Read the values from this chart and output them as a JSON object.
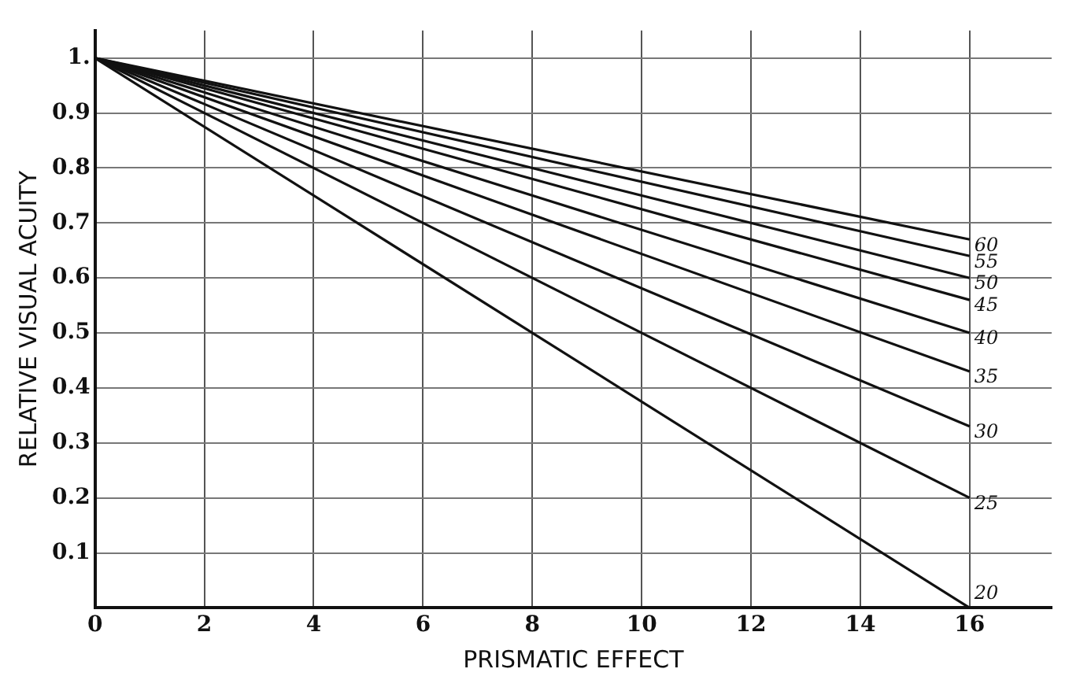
{
  "chart_data": {
    "type": "line",
    "xlabel": "PRISMATIC EFFECT",
    "ylabel": "RELATIVE VISUAL ACUITY",
    "x": [
      0,
      16
    ],
    "series": [
      {
        "name": "20",
        "color": "#111111",
        "values": [
          1,
          0
        ]
      },
      {
        "name": "25",
        "color": "#111111",
        "values": [
          1,
          0.2
        ]
      },
      {
        "name": "30",
        "color": "#111111",
        "values": [
          1,
          0.33
        ]
      },
      {
        "name": "35",
        "color": "#111111",
        "values": [
          1,
          0.43
        ]
      },
      {
        "name": "40",
        "color": "#111111",
        "values": [
          1,
          0.5
        ]
      },
      {
        "name": "45",
        "color": "#111111",
        "values": [
          1,
          0.56
        ]
      },
      {
        "name": "50",
        "color": "#111111",
        "values": [
          1,
          0.6
        ]
      },
      {
        "name": "55",
        "color": "#111111",
        "values": [
          1,
          0.64
        ]
      },
      {
        "name": "60",
        "color": "#111111",
        "values": [
          1,
          0.67
        ]
      }
    ],
    "xlim": [
      0,
      17.5
    ],
    "xticks": [
      0,
      2,
      4,
      6,
      8,
      10,
      12,
      14,
      16
    ],
    "ylim": [
      0,
      1.05
    ],
    "yticks": [
      0.1,
      0.2,
      0.3,
      0.4,
      0.5,
      0.6,
      0.7,
      0.8,
      0.9,
      {
        "value": 1,
        "label": "1."
      }
    ],
    "grid": true,
    "legend": false,
    "marker": "none",
    "line_style": "solid"
  }
}
